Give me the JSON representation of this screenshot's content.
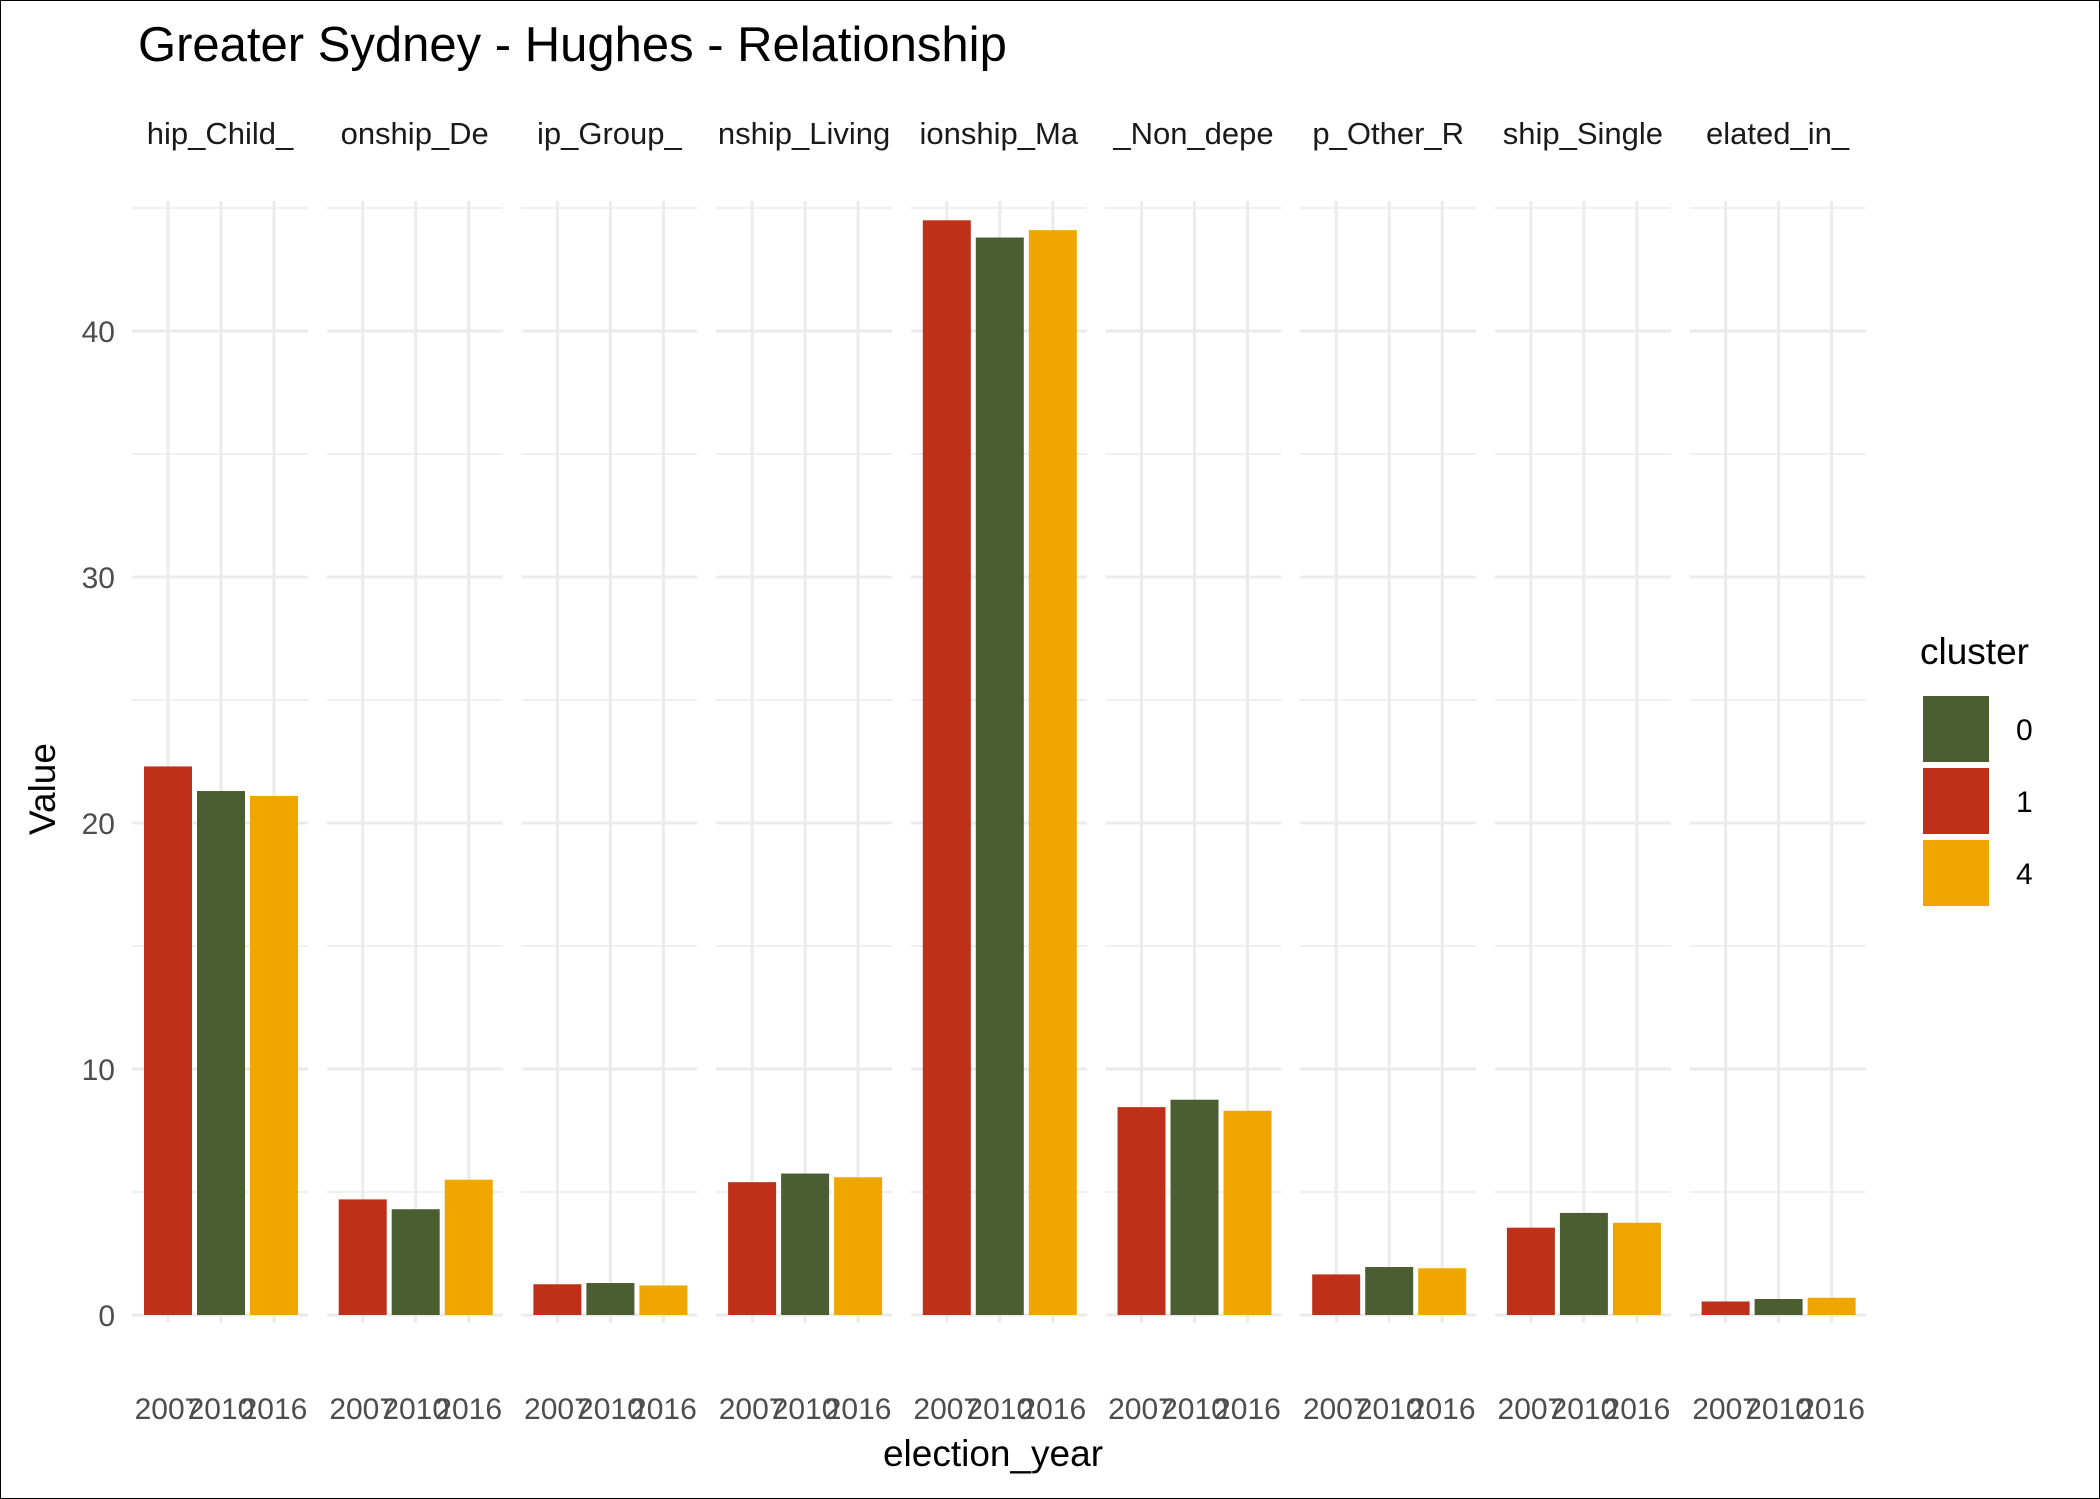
{
  "chart_data": {
    "type": "bar",
    "title": "Greater Sydney - Hughes - Relationship",
    "xlabel": "election_year",
    "ylabel": "Value",
    "ylim": [
      0,
      45
    ],
    "y_ticks": [
      0,
      10,
      20,
      30,
      40
    ],
    "categories": [
      "2007",
      "2010",
      "2016"
    ],
    "grid": true,
    "legend": {
      "title": "cluster",
      "position": "right",
      "entries": [
        {
          "label": "0",
          "color": "#4a5e31"
        },
        {
          "label": "1",
          "color": "#be3019"
        },
        {
          "label": "4",
          "color": "#efa700"
        }
      ]
    },
    "bar_clusters": [
      "1",
      "0",
      "4"
    ],
    "panels": [
      {
        "strip": "hip_Child_",
        "values": [
          22.3,
          21.3,
          21.1
        ]
      },
      {
        "strip": "onship_De",
        "values": [
          4.7,
          4.3,
          5.5
        ]
      },
      {
        "strip": "ip_Group_",
        "values": [
          1.25,
          1.3,
          1.2
        ]
      },
      {
        "strip": "nship_Living",
        "values": [
          5.4,
          5.75,
          5.6
        ]
      },
      {
        "strip": "ionship_Ma",
        "values": [
          44.5,
          43.8,
          44.1
        ]
      },
      {
        "strip": "_Non_depe",
        "values": [
          8.45,
          8.75,
          8.3
        ]
      },
      {
        "strip": "p_Other_R",
        "values": [
          1.65,
          1.95,
          1.9
        ]
      },
      {
        "strip": "ship_Single",
        "values": [
          3.55,
          4.15,
          3.75
        ]
      },
      {
        "strip": "elated_in_",
        "values": [
          0.55,
          0.65,
          0.7
        ]
      }
    ]
  }
}
